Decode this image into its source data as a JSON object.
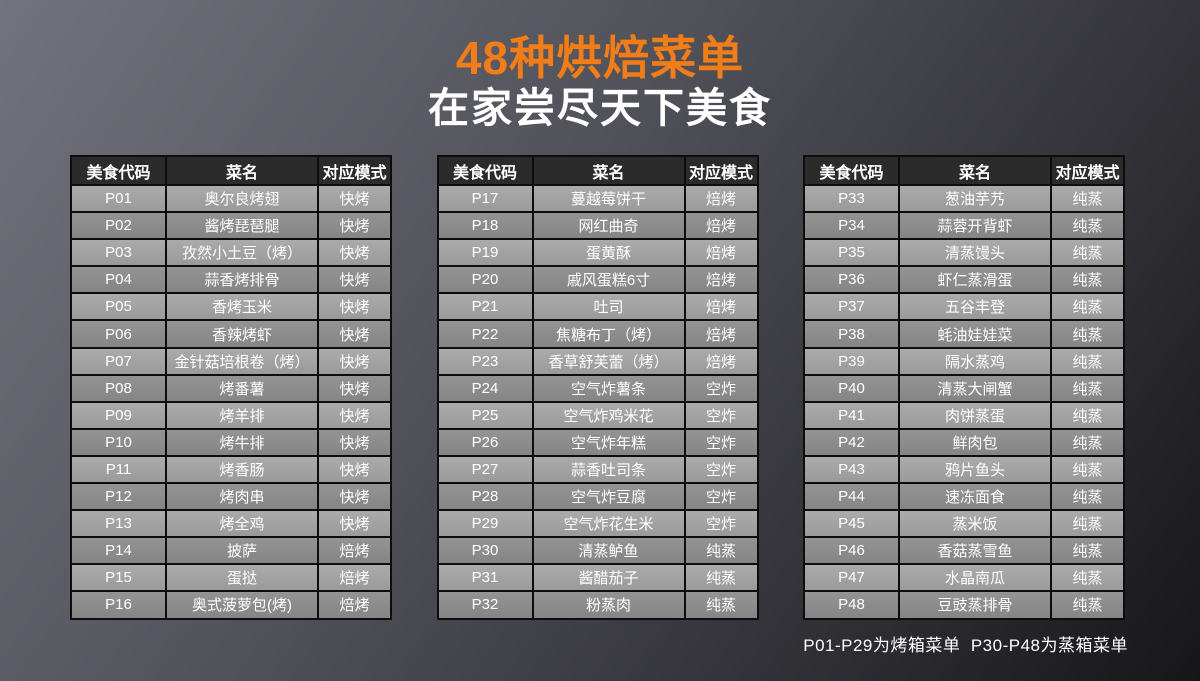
{
  "title": "48种烘焙菜单",
  "subtitle": "在家尝尽天下美食",
  "footer": "P01-P29为烤箱菜单  P30-P48为蒸箱菜单",
  "colors": {
    "accent_orange": "#f07d17",
    "background_light": "#73737d",
    "background_dark": "#17171a",
    "table_header_bg": "#2b2b2b",
    "row_light": "#a2a2a2",
    "row_dark": "#8c8c8c"
  },
  "columns": [
    "美食代码",
    "菜名",
    "对应模式"
  ],
  "tables": [
    {
      "rows": [
        {
          "code": "P01",
          "name": "奥尔良烤翅",
          "mode": "快烤"
        },
        {
          "code": "P02",
          "name": "酱烤琵琶腿",
          "mode": "快烤"
        },
        {
          "code": "P03",
          "name": "孜然小土豆（烤）",
          "mode": "快烤"
        },
        {
          "code": "P04",
          "name": "蒜香烤排骨",
          "mode": "快烤"
        },
        {
          "code": "P05",
          "name": "香烤玉米",
          "mode": "快烤"
        },
        {
          "code": "P06",
          "name": "香辣烤虾",
          "mode": "快烤"
        },
        {
          "code": "P07",
          "name": "金针菇培根卷（烤）",
          "mode": "快烤"
        },
        {
          "code": "P08",
          "name": "烤番薯",
          "mode": "快烤"
        },
        {
          "code": "P09",
          "name": "烤羊排",
          "mode": "快烤"
        },
        {
          "code": "P10",
          "name": "烤牛排",
          "mode": "快烤"
        },
        {
          "code": "P11",
          "name": "烤香肠",
          "mode": "快烤"
        },
        {
          "code": "P12",
          "name": "烤肉串",
          "mode": "快烤"
        },
        {
          "code": "P13",
          "name": "烤全鸡",
          "mode": "快烤"
        },
        {
          "code": "P14",
          "name": "披萨",
          "mode": "焙烤"
        },
        {
          "code": "P15",
          "name": "蛋挞",
          "mode": "焙烤"
        },
        {
          "code": "P16",
          "name": "奥式菠萝包(烤)",
          "mode": "焙烤"
        }
      ]
    },
    {
      "rows": [
        {
          "code": "P17",
          "name": "蔓越莓饼干",
          "mode": "焙烤"
        },
        {
          "code": "P18",
          "name": "网红曲奇",
          "mode": "焙烤"
        },
        {
          "code": "P19",
          "name": "蛋黄酥",
          "mode": "焙烤"
        },
        {
          "code": "P20",
          "name": "戚风蛋糕6寸",
          "mode": "焙烤"
        },
        {
          "code": "P21",
          "name": "吐司",
          "mode": "焙烤"
        },
        {
          "code": "P22",
          "name": "焦糖布丁（烤）",
          "mode": "焙烤"
        },
        {
          "code": "P23",
          "name": "香草舒芙蕾（烤）",
          "mode": "焙烤"
        },
        {
          "code": "P24",
          "name": "空气炸薯条",
          "mode": "空炸"
        },
        {
          "code": "P25",
          "name": "空气炸鸡米花",
          "mode": "空炸"
        },
        {
          "code": "P26",
          "name": "空气炸年糕",
          "mode": "空炸"
        },
        {
          "code": "P27",
          "name": "蒜香吐司条",
          "mode": "空炸"
        },
        {
          "code": "P28",
          "name": "空气炸豆腐",
          "mode": "空炸"
        },
        {
          "code": "P29",
          "name": "空气炸花生米",
          "mode": "空炸"
        },
        {
          "code": "P30",
          "name": "清蒸鲈鱼",
          "mode": "纯蒸"
        },
        {
          "code": "P31",
          "name": "酱醋茄子",
          "mode": "纯蒸"
        },
        {
          "code": "P32",
          "name": "粉蒸肉",
          "mode": "纯蒸"
        }
      ]
    },
    {
      "rows": [
        {
          "code": "P33",
          "name": "葱油芋艿",
          "mode": "纯蒸"
        },
        {
          "code": "P34",
          "name": "蒜蓉开背虾",
          "mode": "纯蒸"
        },
        {
          "code": "P35",
          "name": "清蒸馒头",
          "mode": "纯蒸"
        },
        {
          "code": "P36",
          "name": "虾仁蒸滑蛋",
          "mode": "纯蒸"
        },
        {
          "code": "P37",
          "name": "五谷丰登",
          "mode": "纯蒸"
        },
        {
          "code": "P38",
          "name": "蚝油娃娃菜",
          "mode": "纯蒸"
        },
        {
          "code": "P39",
          "name": "隔水蒸鸡",
          "mode": "纯蒸"
        },
        {
          "code": "P40",
          "name": "清蒸大闸蟹",
          "mode": "纯蒸"
        },
        {
          "code": "P41",
          "name": "肉饼蒸蛋",
          "mode": "纯蒸"
        },
        {
          "code": "P42",
          "name": "鲜肉包",
          "mode": "纯蒸"
        },
        {
          "code": "P43",
          "name": "鸦片鱼头",
          "mode": "纯蒸"
        },
        {
          "code": "P44",
          "name": "速冻面食",
          "mode": "纯蒸"
        },
        {
          "code": "P45",
          "name": "蒸米饭",
          "mode": "纯蒸"
        },
        {
          "code": "P46",
          "name": "香菇蒸雪鱼",
          "mode": "纯蒸"
        },
        {
          "code": "P47",
          "name": "水晶南瓜",
          "mode": "纯蒸"
        },
        {
          "code": "P48",
          "name": "豆豉蒸排骨",
          "mode": "纯蒸"
        }
      ]
    }
  ]
}
